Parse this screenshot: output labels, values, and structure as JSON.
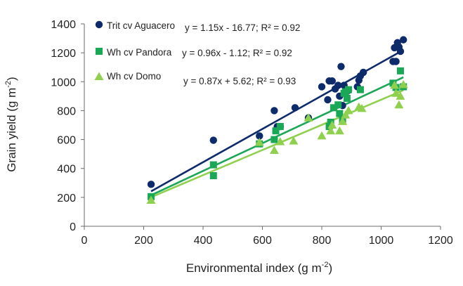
{
  "chart_data": {
    "type": "scatter",
    "title": "",
    "xlabel": "Environmental index (g m",
    "xlabel_sup": "-2",
    "xlabel_end": ")",
    "ylabel": "Grain yield (g m",
    "ylabel_sup": "-2",
    "ylabel_end": ")",
    "xlim": [
      0,
      1200
    ],
    "ylim": [
      0,
      1400
    ],
    "xticks": [
      0,
      200,
      400,
      600,
      800,
      1000,
      1200
    ],
    "yticks": [
      0,
      200,
      400,
      600,
      800,
      1000,
      1200,
      1400
    ],
    "grid": false,
    "legend_position": "top-left",
    "series": [
      {
        "name": "Trit cv Aguacero",
        "marker": "circle",
        "color": "#0d2b6b",
        "equation": "y = 1.15x - 16.77; R² = 0.92",
        "trend": {
          "intercept": -16.77,
          "slope": 1.15,
          "x_range": [
            225,
            1075
          ]
        },
        "points": [
          [
            225,
            290
          ],
          [
            435,
            595
          ],
          [
            590,
            625
          ],
          [
            640,
            800
          ],
          [
            650,
            690
          ],
          [
            660,
            690
          ],
          [
            710,
            820
          ],
          [
            755,
            750
          ],
          [
            800,
            965
          ],
          [
            820,
            875
          ],
          [
            825,
            1005
          ],
          [
            835,
            1005
          ],
          [
            845,
            950
          ],
          [
            855,
            975
          ],
          [
            860,
            900
          ],
          [
            865,
            1105
          ],
          [
            870,
            835
          ],
          [
            875,
            975
          ],
          [
            885,
            940
          ],
          [
            890,
            940
          ],
          [
            920,
            965
          ],
          [
            925,
            1010
          ],
          [
            930,
            1040
          ],
          [
            940,
            1065
          ],
          [
            1040,
            1140
          ],
          [
            1045,
            1235
          ],
          [
            1050,
            1140
          ],
          [
            1055,
            1270
          ],
          [
            1060,
            1240
          ],
          [
            1065,
            1210
          ],
          [
            1075,
            1290
          ]
        ]
      },
      {
        "name": "Wh cv Pandora",
        "marker": "square",
        "color": "#1aa756",
        "equation": "y = 0.96x - 1.12; R² = 0.92",
        "trend": {
          "intercept": -1.12,
          "slope": 0.96,
          "x_range": [
            225,
            1075
          ]
        },
        "points": [
          [
            225,
            205
          ],
          [
            435,
            425
          ],
          [
            435,
            350
          ],
          [
            590,
            570
          ],
          [
            640,
            600
          ],
          [
            645,
            660
          ],
          [
            660,
            690
          ],
          [
            825,
            690
          ],
          [
            830,
            720
          ],
          [
            840,
            820
          ],
          [
            855,
            840
          ],
          [
            860,
            780
          ],
          [
            870,
            735
          ],
          [
            875,
            920
          ],
          [
            880,
            930
          ],
          [
            885,
            885
          ],
          [
            890,
            945
          ],
          [
            930,
            945
          ],
          [
            1040,
            990
          ],
          [
            1050,
            960
          ],
          [
            1065,
            1075
          ],
          [
            1075,
            965
          ]
        ]
      },
      {
        "name": "Wh cv Domo",
        "marker": "triangle",
        "color": "#8fd14f",
        "equation": "y = 0.87x + 5.62; R² = 0.93",
        "trend": {
          "intercept": 5.62,
          "slope": 0.87,
          "x_range": [
            225,
            1075
          ]
        },
        "points": [
          [
            225,
            180
          ],
          [
            590,
            580
          ],
          [
            640,
            525
          ],
          [
            660,
            585
          ],
          [
            705,
            590
          ],
          [
            755,
            750
          ],
          [
            800,
            625
          ],
          [
            830,
            660
          ],
          [
            835,
            700
          ],
          [
            860,
            660
          ],
          [
            870,
            725
          ],
          [
            880,
            770
          ],
          [
            890,
            800
          ],
          [
            925,
            825
          ],
          [
            935,
            815
          ],
          [
            1045,
            975
          ],
          [
            1050,
            920
          ],
          [
            1060,
            840
          ],
          [
            1065,
            900
          ],
          [
            1075,
            980
          ]
        ]
      }
    ]
  }
}
